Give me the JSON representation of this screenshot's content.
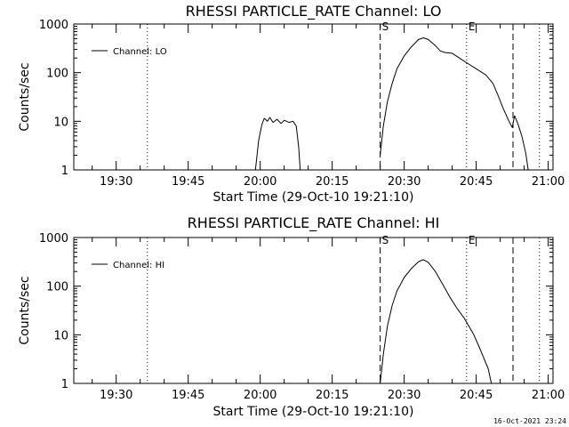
{
  "footer_timestamp": "16-Oct-2021 23:24",
  "chart_data": [
    {
      "type": "line",
      "title": "RHESSI PARTICLE_RATE Channel: LO",
      "xlabel": "Start Time (29-Oct-10 19:21:10)",
      "ylabel": "Counts/sec",
      "y_scale": "log",
      "ylim": [
        1,
        1000
      ],
      "xlim": [
        "19:21:10",
        "21:01:00"
      ],
      "x_ticks": [
        "19:30",
        "19:45",
        "20:00",
        "20:15",
        "20:30",
        "20:45",
        "21:00"
      ],
      "y_ticks": [
        "1",
        "10",
        "100",
        "1000"
      ],
      "legend": {
        "label": "Channel: LO",
        "position": "top-left"
      },
      "markers": [
        {
          "time": "20:25:00",
          "style": "dashed",
          "label": "S"
        },
        {
          "time": "20:43:00",
          "style": "dotted",
          "label": "E"
        },
        {
          "time": "20:52:40",
          "style": "dashed",
          "label": ""
        },
        {
          "time": "19:36:30",
          "style": "dotted",
          "label": ""
        },
        {
          "time": "20:58:10",
          "style": "dotted",
          "label": ""
        }
      ],
      "series": [
        {
          "name": "Channel: LO",
          "segments": [
            [
              [
                "19:59:00",
                1.0
              ],
              [
                "19:59:40",
                4.0
              ],
              [
                "20:00:20",
                8.5
              ],
              [
                "20:00:50",
                11.5
              ],
              [
                "20:01:30",
                10.0
              ],
              [
                "20:02:00",
                12.0
              ],
              [
                "20:02:40",
                9.5
              ],
              [
                "20:03:30",
                11.0
              ],
              [
                "20:04:20",
                9.0
              ],
              [
                "20:05:00",
                10.5
              ],
              [
                "20:06:00",
                9.5
              ],
              [
                "20:06:50",
                10.0
              ],
              [
                "20:07:30",
                8.0
              ],
              [
                "20:08:00",
                3.0
              ],
              [
                "20:08:20",
                1.0
              ]
            ],
            [
              [
                "20:25:00",
                2.0
              ],
              [
                "20:25:40",
                8.0
              ],
              [
                "20:26:30",
                25.0
              ],
              [
                "20:27:30",
                60.0
              ],
              [
                "20:28:30",
                120.0
              ],
              [
                "20:30:00",
                220.0
              ],
              [
                "20:31:30",
                340.0
              ],
              [
                "20:33:00",
                480.0
              ],
              [
                "20:34:00",
                520.0
              ],
              [
                "20:35:00",
                480.0
              ],
              [
                "20:36:30",
                360.0
              ],
              [
                "20:37:30",
                280.0
              ],
              [
                "20:38:30",
                260.0
              ],
              [
                "20:40:00",
                250.0
              ],
              [
                "20:41:30",
                200.0
              ],
              [
                "20:43:00",
                160.0
              ],
              [
                "20:45:00",
                120.0
              ],
              [
                "20:47:00",
                90.0
              ],
              [
                "20:48:30",
                60.0
              ],
              [
                "20:49:30",
                35.0
              ],
              [
                "20:50:40",
                18.0
              ],
              [
                "20:51:50",
                10.0
              ],
              [
                "20:52:30",
                7.5
              ],
              [
                "20:53:00",
                13.0
              ],
              [
                "20:53:40",
                9.0
              ],
              [
                "20:54:30",
                5.0
              ],
              [
                "20:55:20",
                2.2
              ],
              [
                "20:55:50",
                1.0
              ]
            ]
          ]
        }
      ]
    },
    {
      "type": "line",
      "title": "RHESSI PARTICLE_RATE Channel: HI",
      "xlabel": "Start Time (29-Oct-10 19:21:10)",
      "ylabel": "Counts/sec",
      "y_scale": "log",
      "ylim": [
        1,
        1000
      ],
      "xlim": [
        "19:21:10",
        "21:01:00"
      ],
      "x_ticks": [
        "19:30",
        "19:45",
        "20:00",
        "20:15",
        "20:30",
        "20:45",
        "21:00"
      ],
      "y_ticks": [
        "1",
        "10",
        "100",
        "1000"
      ],
      "legend": {
        "label": "Channel: HI",
        "position": "top-left"
      },
      "markers": [
        {
          "time": "20:25:00",
          "style": "dashed",
          "label": "S"
        },
        {
          "time": "20:43:00",
          "style": "dotted",
          "label": "E"
        },
        {
          "time": "20:52:40",
          "style": "dashed",
          "label": ""
        },
        {
          "time": "19:36:30",
          "style": "dotted",
          "label": ""
        },
        {
          "time": "20:58:10",
          "style": "dotted",
          "label": ""
        }
      ],
      "series": [
        {
          "name": "Channel: HI",
          "segments": [
            [
              [
                "20:25:00",
                1.0
              ],
              [
                "20:25:40",
                4.0
              ],
              [
                "20:26:30",
                15.0
              ],
              [
                "20:27:30",
                40.0
              ],
              [
                "20:28:30",
                80.0
              ],
              [
                "20:30:00",
                150.0
              ],
              [
                "20:31:30",
                230.0
              ],
              [
                "20:33:00",
                320.0
              ],
              [
                "20:34:00",
                350.0
              ],
              [
                "20:35:00",
                310.0
              ],
              [
                "20:36:30",
                200.0
              ],
              [
                "20:38:00",
                110.0
              ],
              [
                "20:39:30",
                60.0
              ],
              [
                "20:41:00",
                35.0
              ],
              [
                "20:42:30",
                22.0
              ],
              [
                "20:43:30",
                15.0
              ],
              [
                "20:44:30",
                10.0
              ],
              [
                "20:45:30",
                6.0
              ],
              [
                "20:46:30",
                3.5
              ],
              [
                "20:47:30",
                2.0
              ],
              [
                "20:48:10",
                1.0
              ]
            ]
          ]
        }
      ]
    }
  ]
}
